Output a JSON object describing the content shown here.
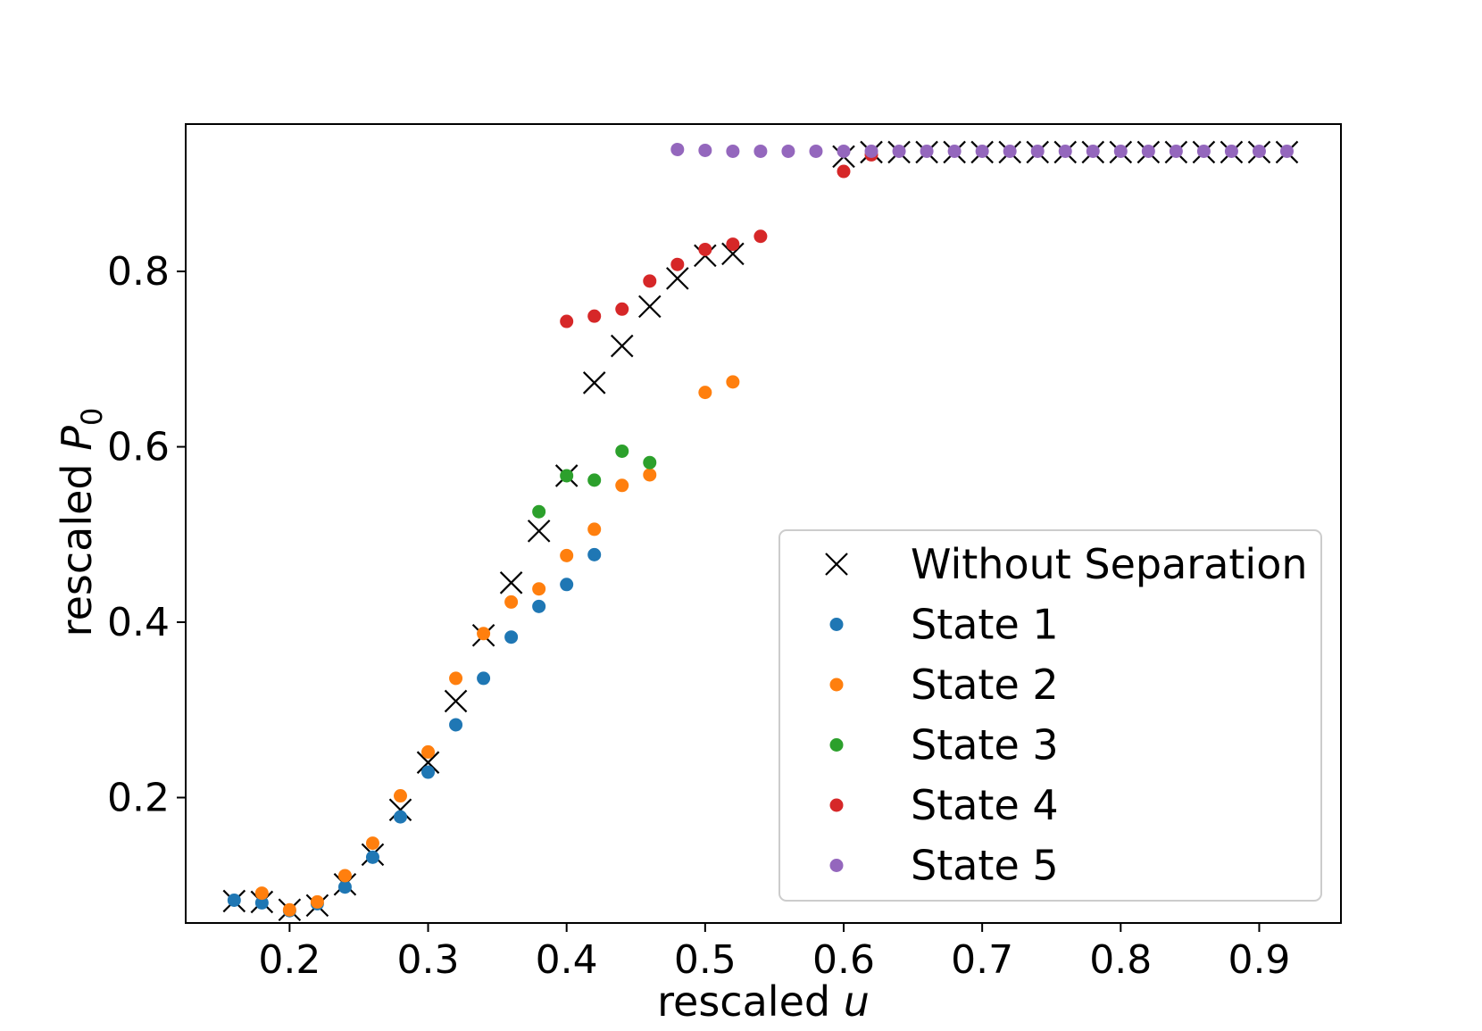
{
  "chart_data": {
    "type": "scatter",
    "title": "",
    "xlabel": "rescaled u",
    "xlabel_parts": {
      "prefix": "rescaled ",
      "var": "u"
    },
    "ylabel": "rescaled P_0",
    "ylabel_parts": {
      "prefix": "rescaled ",
      "var": "P",
      "sub": "0"
    },
    "xlim": [
      0.125,
      0.959
    ],
    "ylim": [
      0.057,
      0.968
    ],
    "x_ticks": [
      0.2,
      0.3,
      0.4,
      0.5,
      0.6,
      0.7,
      0.8,
      0.9
    ],
    "x_tick_labels": [
      "0.2",
      "0.3",
      "0.4",
      "0.5",
      "0.6",
      "0.7",
      "0.8",
      "0.9"
    ],
    "y_ticks": [
      0.2,
      0.4,
      0.6,
      0.8
    ],
    "y_tick_labels": [
      "0.2",
      "0.4",
      "0.6",
      "0.8"
    ],
    "grid": false,
    "legend_position": "lower-right",
    "series": [
      {
        "name": "Without Separation",
        "marker": "x",
        "color": "#000000",
        "points": [
          [
            0.16,
            0.082
          ],
          [
            0.18,
            0.081
          ],
          [
            0.2,
            0.072
          ],
          [
            0.22,
            0.077
          ],
          [
            0.24,
            0.101
          ],
          [
            0.26,
            0.135
          ],
          [
            0.28,
            0.186
          ],
          [
            0.3,
            0.24
          ],
          [
            0.32,
            0.31
          ],
          [
            0.34,
            0.385
          ],
          [
            0.36,
            0.445
          ],
          [
            0.38,
            0.504
          ],
          [
            0.4,
            0.567
          ],
          [
            0.42,
            0.673
          ],
          [
            0.44,
            0.715
          ],
          [
            0.46,
            0.76
          ],
          [
            0.48,
            0.792
          ],
          [
            0.5,
            0.818
          ],
          [
            0.52,
            0.82
          ],
          [
            0.6,
            0.931
          ],
          [
            0.62,
            0.936
          ],
          [
            0.64,
            0.936
          ],
          [
            0.66,
            0.936
          ],
          [
            0.68,
            0.936
          ],
          [
            0.7,
            0.936
          ],
          [
            0.72,
            0.936
          ],
          [
            0.74,
            0.936
          ],
          [
            0.76,
            0.936
          ],
          [
            0.78,
            0.936
          ],
          [
            0.8,
            0.936
          ],
          [
            0.82,
            0.936
          ],
          [
            0.84,
            0.936
          ],
          [
            0.86,
            0.936
          ],
          [
            0.88,
            0.936
          ],
          [
            0.9,
            0.936
          ],
          [
            0.92,
            0.936
          ]
        ]
      },
      {
        "name": "State 1",
        "marker": "o",
        "color": "#1f77b4",
        "points": [
          [
            0.16,
            0.083
          ],
          [
            0.18,
            0.08
          ],
          [
            0.2,
            0.071
          ],
          [
            0.22,
            0.079
          ],
          [
            0.24,
            0.098
          ],
          [
            0.26,
            0.132
          ],
          [
            0.28,
            0.178
          ],
          [
            0.3,
            0.229
          ],
          [
            0.32,
            0.283
          ],
          [
            0.34,
            0.336
          ],
          [
            0.36,
            0.383
          ],
          [
            0.38,
            0.418
          ],
          [
            0.4,
            0.443
          ],
          [
            0.42,
            0.477
          ]
        ]
      },
      {
        "name": "State 2",
        "marker": "o",
        "color": "#ff7f0e",
        "points": [
          [
            0.18,
            0.091
          ],
          [
            0.2,
            0.072
          ],
          [
            0.22,
            0.081
          ],
          [
            0.24,
            0.111
          ],
          [
            0.26,
            0.148
          ],
          [
            0.28,
            0.202
          ],
          [
            0.3,
            0.252
          ],
          [
            0.32,
            0.336
          ],
          [
            0.34,
            0.387
          ],
          [
            0.36,
            0.423
          ],
          [
            0.38,
            0.438
          ],
          [
            0.4,
            0.476
          ],
          [
            0.42,
            0.506
          ],
          [
            0.44,
            0.556
          ],
          [
            0.46,
            0.568
          ],
          [
            0.5,
            0.662
          ],
          [
            0.52,
            0.674
          ]
        ]
      },
      {
        "name": "State 3",
        "marker": "o",
        "color": "#2ca02c",
        "points": [
          [
            0.38,
            0.526
          ],
          [
            0.4,
            0.567
          ],
          [
            0.42,
            0.562
          ],
          [
            0.44,
            0.595
          ],
          [
            0.46,
            0.582
          ]
        ]
      },
      {
        "name": "State 4",
        "marker": "o",
        "color": "#d62728",
        "points": [
          [
            0.4,
            0.743
          ],
          [
            0.42,
            0.749
          ],
          [
            0.44,
            0.757
          ],
          [
            0.46,
            0.789
          ],
          [
            0.48,
            0.808
          ],
          [
            0.5,
            0.825
          ],
          [
            0.52,
            0.831
          ],
          [
            0.54,
            0.84
          ],
          [
            0.6,
            0.914
          ],
          [
            0.62,
            0.933
          ]
        ]
      },
      {
        "name": "State 5",
        "marker": "o",
        "color": "#9467bd",
        "points": [
          [
            0.48,
            0.939
          ],
          [
            0.5,
            0.938
          ],
          [
            0.52,
            0.937
          ],
          [
            0.54,
            0.937
          ],
          [
            0.56,
            0.937
          ],
          [
            0.58,
            0.937
          ],
          [
            0.6,
            0.937
          ],
          [
            0.62,
            0.937
          ],
          [
            0.64,
            0.937
          ],
          [
            0.66,
            0.937
          ],
          [
            0.68,
            0.937
          ],
          [
            0.7,
            0.937
          ],
          [
            0.72,
            0.937
          ],
          [
            0.74,
            0.937
          ],
          [
            0.76,
            0.937
          ],
          [
            0.78,
            0.937
          ],
          [
            0.8,
            0.937
          ],
          [
            0.82,
            0.937
          ],
          [
            0.84,
            0.937
          ],
          [
            0.86,
            0.937
          ],
          [
            0.88,
            0.937
          ],
          [
            0.9,
            0.937
          ],
          [
            0.92,
            0.937
          ]
        ]
      }
    ]
  }
}
